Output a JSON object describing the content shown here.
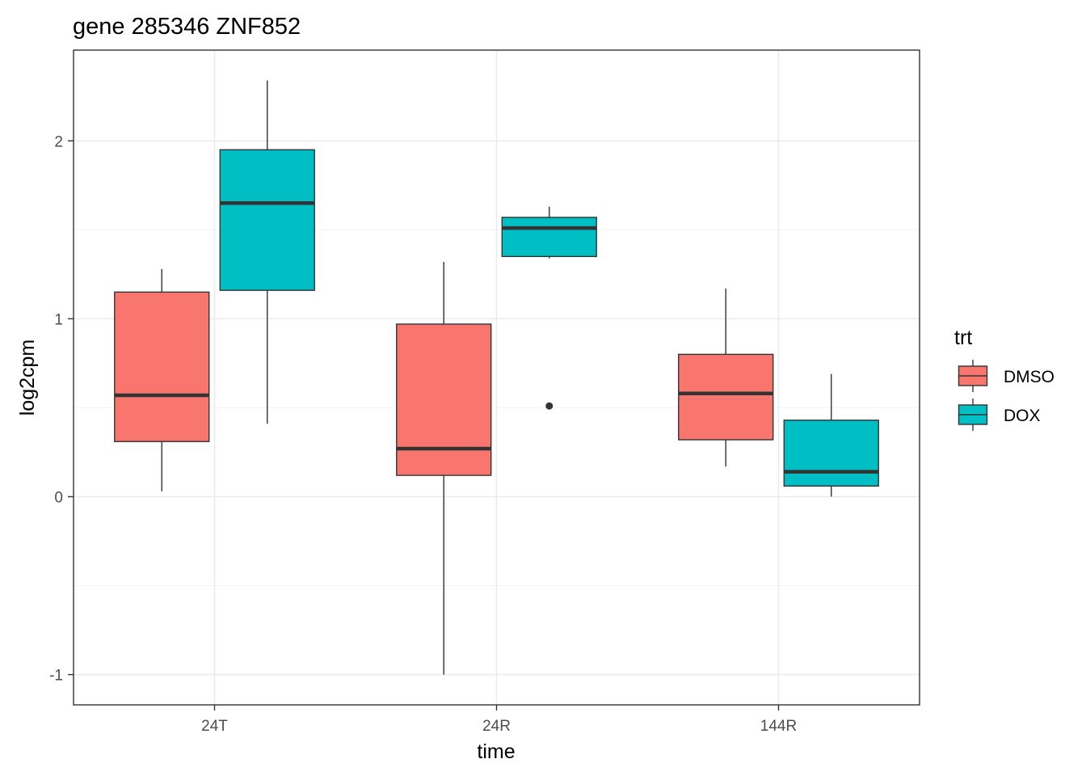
{
  "chart_data": {
    "type": "boxplot",
    "title": "gene 285346 ZNF852",
    "xlabel": "time",
    "ylabel": "log2cpm",
    "categories": [
      "24T",
      "24R",
      "144R"
    ],
    "ylim": [
      -1.17,
      2.51
    ],
    "yticks": [
      -1,
      0,
      1,
      2
    ],
    "ytick_labels": [
      "-1",
      "0",
      "1",
      "2"
    ],
    "grid": true,
    "legend": {
      "title": "trt",
      "position": "right"
    },
    "series": [
      {
        "name": "DMSO",
        "color": "#F8766D",
        "boxes": [
          {
            "category": "24T",
            "min": 0.03,
            "q1": 0.31,
            "median": 0.57,
            "q3": 1.15,
            "max": 1.28,
            "outliers": []
          },
          {
            "category": "24R",
            "min": -1.0,
            "q1": 0.12,
            "median": 0.27,
            "q3": 0.97,
            "max": 1.32,
            "outliers": []
          },
          {
            "category": "144R",
            "min": 0.17,
            "q1": 0.32,
            "median": 0.58,
            "q3": 0.8,
            "max": 1.17,
            "outliers": []
          }
        ]
      },
      {
        "name": "DOX",
        "color": "#00BFC4",
        "boxes": [
          {
            "category": "24T",
            "min": 0.41,
            "q1": 1.16,
            "median": 1.65,
            "q3": 1.95,
            "max": 2.34,
            "outliers": []
          },
          {
            "category": "24R",
            "min": 1.34,
            "q1": 1.35,
            "median": 1.51,
            "q3": 1.57,
            "max": 1.63,
            "outliers": [
              0.51
            ]
          },
          {
            "category": "144R",
            "min": 0.0,
            "q1": 0.06,
            "median": 0.14,
            "q3": 0.43,
            "max": 0.69,
            "outliers": []
          }
        ]
      }
    ]
  }
}
